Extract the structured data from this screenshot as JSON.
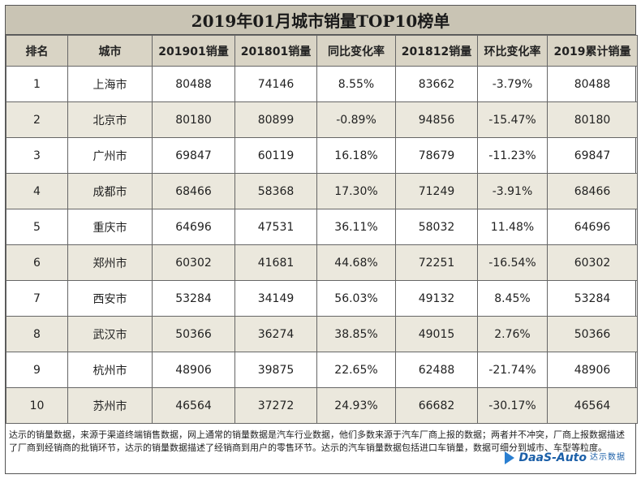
{
  "title": "2019年01月城市销量TOP10榜单",
  "columns": [
    "排名",
    "城市",
    "201901销量",
    "201801销量",
    "同比变化率",
    "201812销量",
    "环比变化率",
    "2019累计销量"
  ],
  "rows": [
    [
      "1",
      "上海市",
      "80488",
      "74146",
      "8.55%",
      "83662",
      "-3.79%",
      "80488"
    ],
    [
      "2",
      "北京市",
      "80180",
      "80899",
      "-0.89%",
      "94856",
      "-15.47%",
      "80180"
    ],
    [
      "3",
      "广州市",
      "69847",
      "60119",
      "16.18%",
      "78679",
      "-11.23%",
      "69847"
    ],
    [
      "4",
      "成都市",
      "68466",
      "58368",
      "17.30%",
      "71249",
      "-3.91%",
      "68466"
    ],
    [
      "5",
      "重庆市",
      "64696",
      "47531",
      "36.11%",
      "58032",
      "11.48%",
      "64696"
    ],
    [
      "6",
      "郑州市",
      "60302",
      "41681",
      "44.68%",
      "72251",
      "-16.54%",
      "60302"
    ],
    [
      "7",
      "西安市",
      "53284",
      "34149",
      "56.03%",
      "49132",
      "8.45%",
      "53284"
    ],
    [
      "8",
      "武汉市",
      "50366",
      "36274",
      "38.85%",
      "49015",
      "2.76%",
      "50366"
    ],
    [
      "9",
      "杭州市",
      "48906",
      "39875",
      "22.65%",
      "62488",
      "-21.74%",
      "48906"
    ],
    [
      "10",
      "苏州市",
      "46564",
      "37272",
      "24.93%",
      "66682",
      "-30.17%",
      "46564"
    ]
  ],
  "footer": {
    "note": "达示的销量数据，来源于渠道终端销售数据，网上通常的销量数据是汽车行业数据，他们多数来源于汽车厂商上报的数据；两者并不冲突，厂商上报数据描述了厂商到经销商的批销环节，达示的销量数据描述了经销商到用户的零售环节。达示的汽车销量数据包括进口车销量，数据可细分到城市、车型等粒度。",
    "logo_brand": "DaaS-Auto",
    "logo_sub": "达示数据"
  },
  "colors": {
    "title_bg": "#c9c4b4",
    "header_bg": "#d9d4c5",
    "alt_row_bg": "#ebe8dd",
    "logo_blue": "#1b5fa8"
  }
}
